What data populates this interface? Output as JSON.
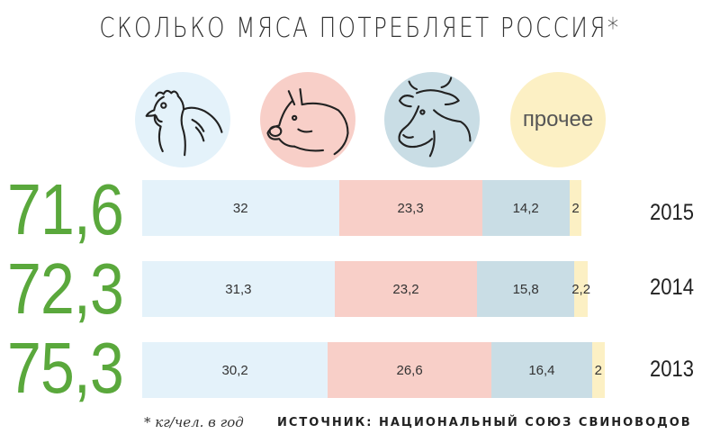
{
  "title": "СКОЛЬКО МЯСА ПОТРЕБЛЯЕТ РОССИЯ*",
  "categories": [
    {
      "icon": "chicken-icon",
      "label": "",
      "color": "#e4f2fa"
    },
    {
      "icon": "pig-icon",
      "label": "",
      "color": "#f8cfc8"
    },
    {
      "icon": "cow-icon",
      "label": "",
      "color": "#c9dde5"
    },
    {
      "icon": "other-icon",
      "label": "прочее",
      "color": "#fcf0c4"
    }
  ],
  "footnote": "* кг/чел. в год",
  "source": "ИСТОЧНИК: НАЦИОНАЛЬНЫЙ СОЮЗ СВИНОВОДОВ",
  "accent_color": "#5aa83c",
  "chart_data": {
    "type": "bar",
    "orientation": "horizontal",
    "stacked": true,
    "title": "СКОЛЬКО МЯСА ПОТРЕБЛЯЕТ РОССИЯ*",
    "categories": [
      "2015",
      "2014",
      "2013"
    ],
    "totals": [
      "71,6",
      "72,3",
      "75,3"
    ],
    "series": [
      {
        "color": "#e4f2fa",
        "values": [
          32,
          31.3,
          30.2
        ],
        "labels": [
          "32",
          "31,3",
          "30,2"
        ]
      },
      {
        "color": "#f8cfc8",
        "values": [
          23.3,
          23.2,
          26.6
        ],
        "labels": [
          "23,3",
          "23,2",
          "26,6"
        ]
      },
      {
        "color": "#c9dde5",
        "values": [
          14.2,
          15.8,
          16.4
        ],
        "labels": [
          "14,2",
          "15,8",
          "16,4"
        ]
      },
      {
        "color": "#fcf0c4",
        "values": [
          2,
          2.2,
          2
        ],
        "labels": [
          "2",
          "2,2",
          "2"
        ]
      }
    ],
    "xlim": [
      0,
      75.3
    ],
    "grid": false,
    "legend": "top"
  }
}
